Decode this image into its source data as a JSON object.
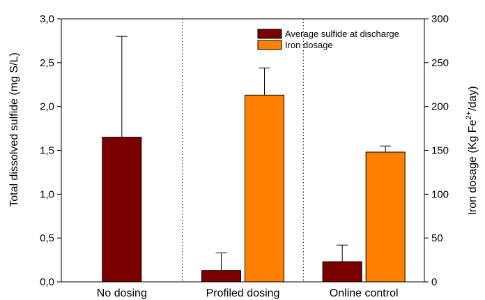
{
  "chart_data": {
    "type": "bar",
    "categories": [
      "No dosing",
      "Profiled dosing",
      "Online control"
    ],
    "series": [
      {
        "name": "Average sulfide at discharge",
        "axis": "left",
        "color": "#7a0000",
        "values": [
          1.65,
          0.13,
          0.23
        ],
        "errors": [
          1.15,
          0.2,
          0.19
        ]
      },
      {
        "name": "Iron dosage",
        "axis": "right",
        "color": "#ff8000",
        "values": [
          null,
          213,
          148
        ],
        "errors": [
          null,
          31,
          7
        ]
      }
    ],
    "ylabel": "Total dissolved sulfide (mg S/L)",
    "ylabel_right": {
      "prefix": "Iron dosage (Kg Fe",
      "sup": "2+",
      "suffix": "/day)"
    },
    "ylim": [
      0,
      3
    ],
    "ylim_right": [
      0,
      300
    ],
    "yticks": [
      "0,0",
      "0,5",
      "1,0",
      "1,5",
      "2,0",
      "2,5",
      "3,0"
    ],
    "yticks_right": [
      "0",
      "50",
      "100",
      "150",
      "200",
      "250",
      "300"
    ],
    "legend_position": "top-right",
    "category_separators": "dotted",
    "grid": false
  }
}
